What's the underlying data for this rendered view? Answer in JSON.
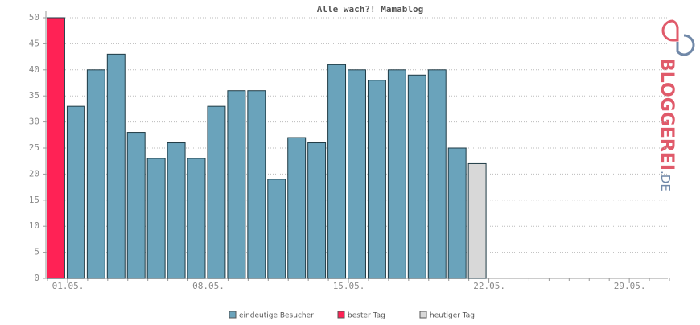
{
  "chart_data": {
    "type": "bar",
    "title": "Alle wach?! Mamablog",
    "categories": [
      "01.05.",
      null,
      null,
      null,
      null,
      null,
      null,
      "08.05.",
      null,
      null,
      null,
      null,
      null,
      null,
      "15.05.",
      null,
      null,
      null,
      null,
      null,
      null,
      "22.05.",
      null,
      null,
      null,
      null,
      null,
      null,
      "29.05.",
      null,
      null
    ],
    "series": [
      {
        "name": "eindeutige Besucher",
        "color": "#6aa3bb",
        "values": [
          null,
          33,
          40,
          43,
          28,
          23,
          26,
          23,
          33,
          36,
          36,
          19,
          27,
          26,
          41,
          40,
          38,
          40,
          39,
          40,
          25,
          null,
          null,
          null,
          null,
          null,
          null,
          null,
          null,
          null,
          null
        ]
      },
      {
        "name": "bester Tag",
        "color": "#ff2255",
        "values": [
          50,
          null,
          null,
          null,
          null,
          null,
          null,
          null,
          null,
          null,
          null,
          null,
          null,
          null,
          null,
          null,
          null,
          null,
          null,
          null,
          null,
          null,
          null,
          null,
          null,
          null,
          null,
          null,
          null,
          null,
          null
        ]
      },
      {
        "name": "heutiger Tag",
        "color": "#d8d8d8",
        "values": [
          null,
          null,
          null,
          null,
          null,
          null,
          null,
          null,
          null,
          null,
          null,
          null,
          null,
          null,
          null,
          null,
          null,
          null,
          null,
          null,
          null,
          22,
          null,
          null,
          null,
          null,
          null,
          null,
          null,
          null,
          null
        ]
      }
    ],
    "ylim": [
      0,
      50
    ],
    "yticks": [
      0,
      5,
      10,
      15,
      20,
      25,
      30,
      35,
      40,
      45,
      50
    ],
    "grid": true
  },
  "logo": {
    "text": "BLOGGEREI",
    "suffix": ".DE"
  }
}
